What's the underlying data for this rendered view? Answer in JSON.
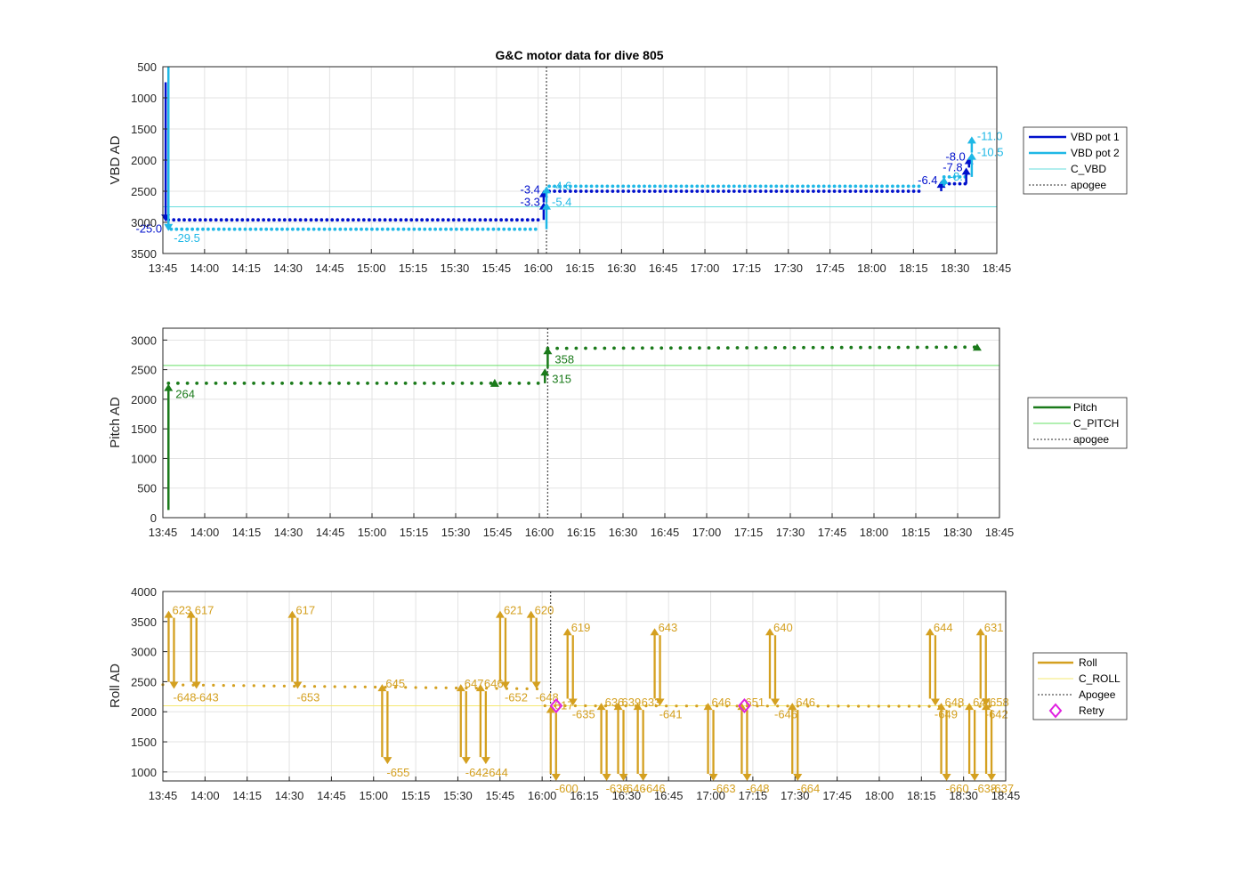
{
  "chart_data": [
    {
      "type": "line",
      "title": "G&C motor data for dive 805",
      "ylabel": "VBD AD",
      "xlim": [
        "13:45",
        "18:45"
      ],
      "ylim": [
        500,
        3500
      ],
      "y_reversed": true,
      "grid": true,
      "x_ticks": [
        "13:45",
        "14:00",
        "14:15",
        "14:30",
        "14:45",
        "15:00",
        "15:15",
        "15:30",
        "15:45",
        "16:00",
        "16:15",
        "16:30",
        "16:45",
        "17:00",
        "17:15",
        "17:30",
        "17:45",
        "18:00",
        "18:15",
        "18:30",
        "18:45"
      ],
      "y_ticks": [
        500,
        1000,
        1500,
        2000,
        2500,
        3000,
        3500
      ],
      "legend_position": "right",
      "legend": [
        "VBD pot 1",
        "VBD pot 2",
        "C_VBD",
        "apogee"
      ],
      "colors": {
        "pot1": "#0010cc",
        "pot2": "#1fb8e6",
        "c_vbd": "#66dddd",
        "apogee": "#555555"
      },
      "c_vbd": 2750,
      "apogee": "16:03",
      "series": [
        {
          "name": "VBD pot 1",
          "dots": [
            [
              "13:47",
              2960
            ],
            [
              "16:00",
              2960
            ],
            [
              "16:04",
              2500
            ],
            [
              "18:18",
              2500
            ],
            [
              "18:26",
              2380
            ],
            [
              "18:34",
              2380
            ]
          ]
        },
        {
          "name": "VBD pot 2",
          "dots": [
            [
              "13:48",
              3110
            ],
            [
              "16:00",
              3110
            ],
            [
              "16:04",
              2420
            ],
            [
              "18:18",
              2420
            ],
            [
              "18:26",
              2270
            ],
            [
              "18:34",
              2270
            ]
          ]
        }
      ],
      "moves": [
        {
          "series": "VBD pot 1",
          "t": "13:46",
          "from": 750,
          "to": 2990,
          "label": "-25.0"
        },
        {
          "series": "VBD pot 2",
          "t": "13:47",
          "from": 500,
          "to": 3140,
          "label": "-29.5"
        },
        {
          "series": "VBD pot 1",
          "t": "16:02",
          "from": 2960,
          "to": 2680,
          "label": "-3.3"
        },
        {
          "series": "VBD pot 1",
          "t": "16:02",
          "from": 2680,
          "to": 2480,
          "label": "-3.4"
        },
        {
          "series": "VBD pot 2",
          "t": "16:03",
          "from": 3110,
          "to": 2680,
          "label": "-5.4"
        },
        {
          "series": "VBD pot 2",
          "t": "16:03",
          "from": 2680,
          "to": 2420,
          "label": "-4.6"
        },
        {
          "series": "VBD pot 1",
          "t": "18:25",
          "from": 2500,
          "to": 2330,
          "label": "-6.4"
        },
        {
          "series": "VBD pot 2",
          "t": "18:26",
          "from": 2420,
          "to": 2270,
          "label": "-8.7"
        },
        {
          "series": "VBD pot 1",
          "t": "18:34",
          "from": 2380,
          "to": 2120,
          "label": "-7.8"
        },
        {
          "series": "VBD pot 1",
          "t": "18:35",
          "from": 2120,
          "to": 1950,
          "label": "-8.0"
        },
        {
          "series": "VBD pot 2",
          "t": "18:36",
          "from": 2270,
          "to": 1880,
          "label": "-10.5"
        },
        {
          "series": "VBD pot 2",
          "t": "18:36",
          "from": 1880,
          "to": 1620,
          "label": "-11.0"
        }
      ]
    },
    {
      "type": "line",
      "ylabel": "Pitch AD",
      "xlim": [
        "13:45",
        "18:45"
      ],
      "ylim": [
        0,
        3200
      ],
      "grid": true,
      "x_ticks": [
        "13:45",
        "14:00",
        "14:15",
        "14:30",
        "14:45",
        "15:00",
        "15:15",
        "15:30",
        "15:45",
        "16:00",
        "16:15",
        "16:30",
        "16:45",
        "17:00",
        "17:15",
        "17:30",
        "17:45",
        "18:00",
        "18:15",
        "18:30",
        "18:45"
      ],
      "y_ticks": [
        0,
        500,
        1000,
        1500,
        2000,
        2500,
        3000
      ],
      "legend_position": "right",
      "legend": [
        "Pitch",
        "C_PITCH",
        "apogee"
      ],
      "colors": {
        "pitch": "#1a7a1a",
        "c_pitch": "#66e066",
        "apogee": "#555555"
      },
      "c_pitch": 2570,
      "apogee": "16:03",
      "series": [
        {
          "name": "Pitch",
          "dots": [
            [
              "13:47",
              2270
            ],
            [
              "16:01",
              2270
            ],
            [
              "16:03",
              2860
            ],
            [
              "18:38",
              2880
            ]
          ]
        }
      ],
      "moves": [
        {
          "t": "13:47",
          "from": 130,
          "to": 2260,
          "label": "264"
        },
        {
          "t": "15:44",
          "from": 2270,
          "to": 2270,
          "label": ""
        },
        {
          "t": "16:02",
          "from": 2270,
          "to": 2520,
          "label": "315"
        },
        {
          "t": "16:03",
          "from": 2520,
          "to": 2880,
          "label": "358"
        },
        {
          "t": "18:37",
          "from": 2880,
          "to": 2940,
          "label": ""
        }
      ]
    },
    {
      "type": "line",
      "ylabel": "Roll AD",
      "xlim": [
        "13:45",
        "18:45"
      ],
      "ylim": [
        850,
        4000
      ],
      "grid": true,
      "x_ticks": [
        "13:45",
        "14:00",
        "14:15",
        "14:30",
        "14:45",
        "15:00",
        "15:15",
        "15:30",
        "15:45",
        "16:00",
        "16:15",
        "16:30",
        "16:45",
        "17:00",
        "17:15",
        "17:30",
        "17:45",
        "18:00",
        "18:15",
        "18:30",
        "18:45"
      ],
      "y_ticks": [
        1000,
        1500,
        2000,
        2500,
        3000,
        3500,
        4000
      ],
      "legend_position": "right",
      "legend": [
        "Roll",
        "C_ROLL",
        "Apogee",
        "Retry"
      ],
      "colors": {
        "roll": "#d4a020",
        "c_roll": "#f5e870",
        "apogee": "#555555",
        "retry": "#e020e0"
      },
      "c_roll": 2100,
      "apogee": "16:03",
      "series": [
        {
          "name": "Roll",
          "dots": [
            [
              "13:45",
              2450
            ],
            [
              "16:00",
              2380
            ],
            [
              "16:01",
              2100
            ],
            [
              "18:40",
              2090
            ]
          ]
        }
      ],
      "retry": [
        [
          "16:05",
          2100
        ],
        [
          "17:12",
          2100
        ]
      ],
      "moves": [
        {
          "t": "13:48",
          "top": 3680,
          "bottom": 2380,
          "top_label": "623",
          "bottom_label": "-648"
        },
        {
          "t": "13:56",
          "top": 3680,
          "bottom": 2380,
          "top_label": "617",
          "bottom_label": "-643"
        },
        {
          "t": "14:32",
          "top": 3680,
          "bottom": 2380,
          "top_label": "617",
          "bottom_label": "-653"
        },
        {
          "t": "15:04",
          "top": 2460,
          "bottom": 1130,
          "top_label": "645",
          "bottom_label": "-655"
        },
        {
          "t": "15:32",
          "top": 2460,
          "bottom": 1130,
          "top_label": "647",
          "bottom_label": "-642"
        },
        {
          "t": "15:39",
          "top": 2460,
          "bottom": 1130,
          "top_label": "646",
          "bottom_label": "-644"
        },
        {
          "t": "15:46",
          "top": 3680,
          "bottom": 2380,
          "top_label": "621",
          "bottom_label": "-652"
        },
        {
          "t": "15:57",
          "top": 3680,
          "bottom": 2380,
          "top_label": "620",
          "bottom_label": "-648"
        },
        {
          "t": "16:04",
          "top": 2100,
          "bottom": 850,
          "top_label": "617",
          "bottom_label": "-600"
        },
        {
          "t": "16:10",
          "top": 3390,
          "bottom": 2100,
          "top_label": "619",
          "bottom_label": "-635"
        },
        {
          "t": "16:22",
          "top": 2150,
          "bottom": 850,
          "top_label": "636",
          "bottom_label": "-636"
        },
        {
          "t": "16:28",
          "top": 2150,
          "bottom": 850,
          "top_label": "639",
          "bottom_label": "-646"
        },
        {
          "t": "16:35",
          "top": 2150,
          "bottom": 850,
          "top_label": "633",
          "bottom_label": "-646"
        },
        {
          "t": "16:41",
          "top": 3390,
          "bottom": 2100,
          "top_label": "643",
          "bottom_label": "-641"
        },
        {
          "t": "17:00",
          "top": 2150,
          "bottom": 850,
          "top_label": "646",
          "bottom_label": "-663"
        },
        {
          "t": "17:12",
          "top": 2150,
          "bottom": 850,
          "top_label": "651",
          "bottom_label": "-648"
        },
        {
          "t": "17:22",
          "top": 3390,
          "bottom": 2100,
          "top_label": "640",
          "bottom_label": "-646"
        },
        {
          "t": "17:30",
          "top": 2150,
          "bottom": 850,
          "top_label": "646",
          "bottom_label": "-664"
        },
        {
          "t": "18:19",
          "top": 3390,
          "bottom": 2100,
          "top_label": "644",
          "bottom_label": "-649"
        },
        {
          "t": "18:23",
          "top": 2150,
          "bottom": 850,
          "top_label": "648",
          "bottom_label": "-660"
        },
        {
          "t": "18:33",
          "top": 2150,
          "bottom": 850,
          "top_label": "641",
          "bottom_label": "-638"
        },
        {
          "t": "18:37",
          "top": 3390,
          "bottom": 2100,
          "top_label": "631",
          "bottom_label": "-642"
        },
        {
          "t": "18:39",
          "top": 2150,
          "bottom": 850,
          "top_label": "658",
          "bottom_label": "-637"
        }
      ]
    }
  ]
}
